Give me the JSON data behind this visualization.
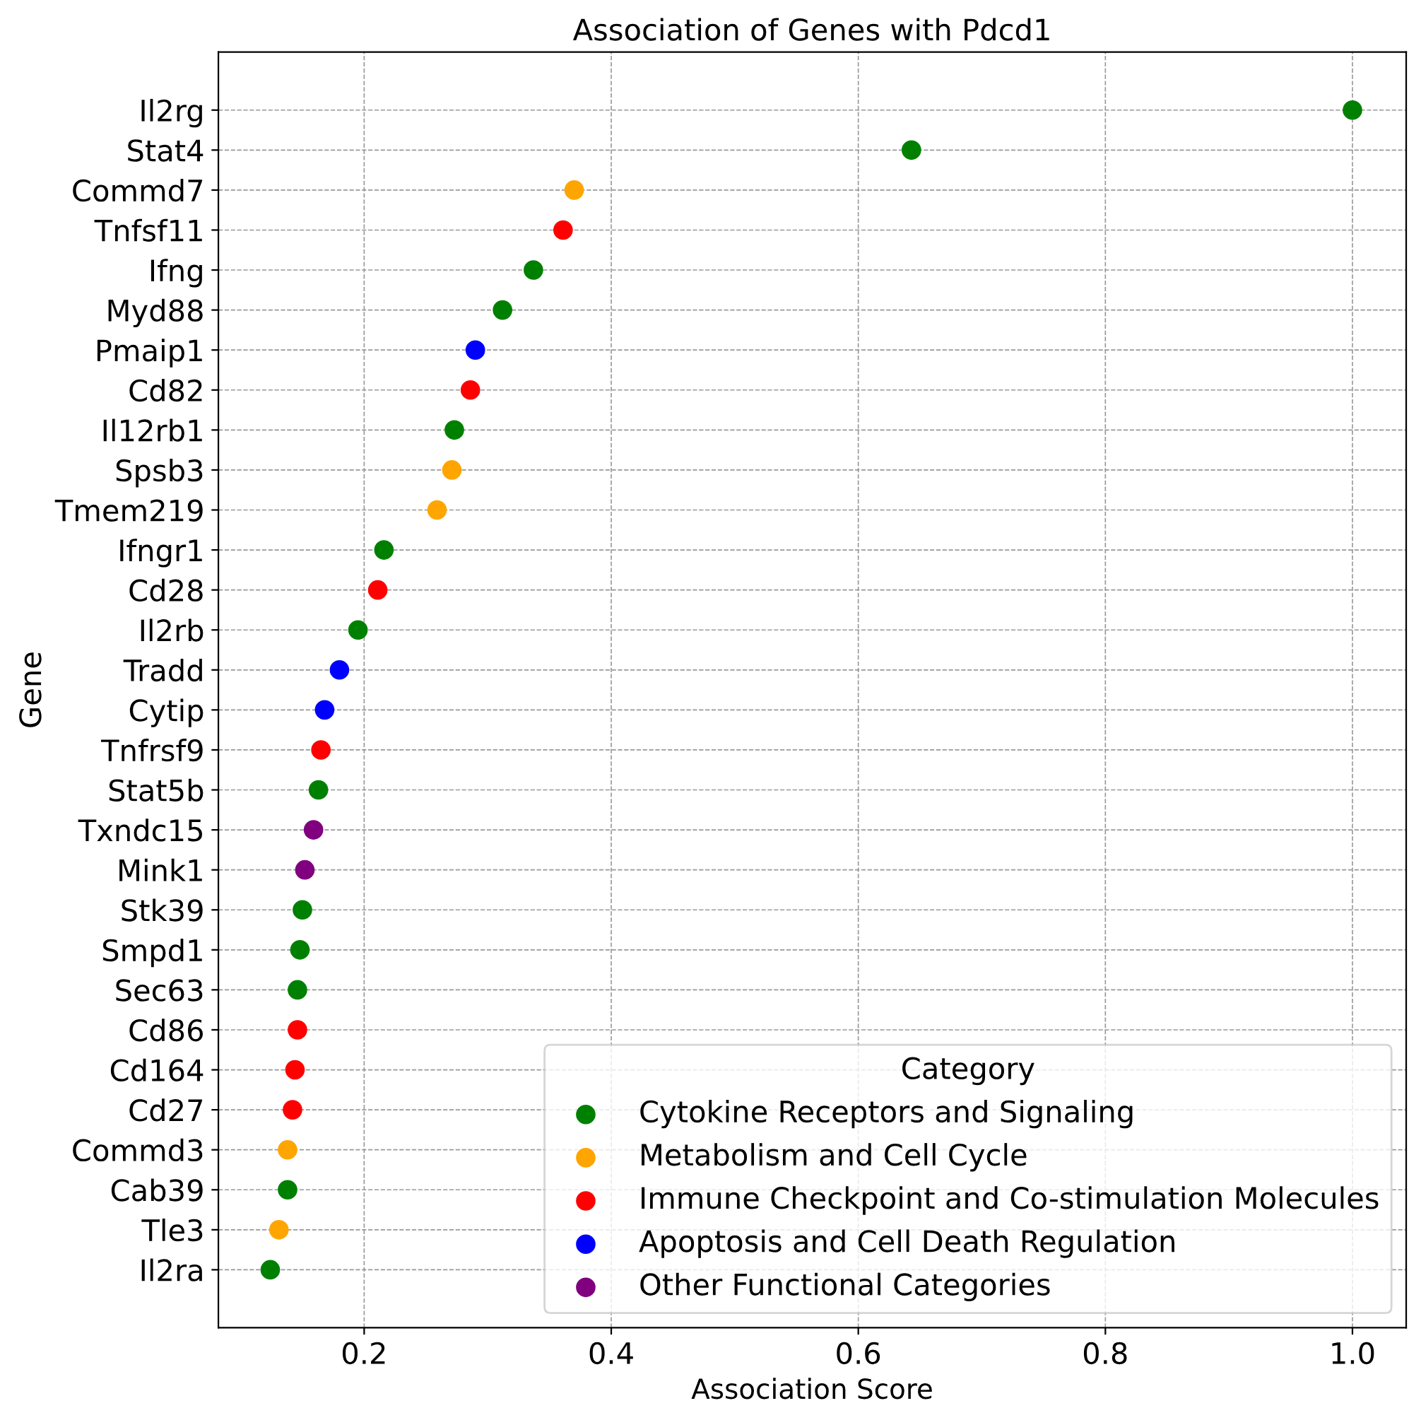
{
  "chart_data": {
    "type": "scatter",
    "title": "Association of Genes with Pdcd1",
    "xlabel": "Association Score",
    "ylabel": "Gene",
    "legend_title": "Category",
    "categories": [
      "Il2rg",
      "Stat4",
      "Commd7",
      "Tnfsf11",
      "Ifng",
      "Myd88",
      "Pmaip1",
      "Cd82",
      "Il12rb1",
      "Spsb3",
      "Tmem219",
      "Ifngr1",
      "Cd28",
      "Il2rb",
      "Tradd",
      "Cytip",
      "Tnfrsf9",
      "Stat5b",
      "Txndc15",
      "Mink1",
      "Stk39",
      "Smpd1",
      "Sec63",
      "Cd86",
      "Cd164",
      "Cd27",
      "Commd3",
      "Cab39",
      "Tle3",
      "Il2ra"
    ],
    "orientation": "horizontal",
    "xlim": [
      0.082,
      1.0435
    ],
    "xticks": [
      0.2,
      0.4,
      0.6,
      0.8,
      {
        "value": 1.0,
        "label": "1.0"
      }
    ],
    "grid": true,
    "legend": "bottom right",
    "marker": "circle",
    "series": [
      {
        "name": "Cytokine Receptors and Signaling",
        "color": "#008000",
        "values": [
          1.0,
          0.643,
          null,
          null,
          0.337,
          0.312,
          null,
          null,
          0.273,
          null,
          null,
          0.216,
          null,
          0.195,
          null,
          null,
          null,
          0.163,
          null,
          null,
          0.15,
          0.148,
          0.146,
          null,
          null,
          null,
          null,
          0.138,
          null,
          0.124
        ]
      },
      {
        "name": "Metabolism and Cell Cycle",
        "color": "#ffa500",
        "values": [
          null,
          null,
          0.37,
          null,
          null,
          null,
          null,
          null,
          null,
          0.271,
          0.259,
          null,
          null,
          null,
          null,
          null,
          null,
          null,
          null,
          null,
          null,
          null,
          null,
          null,
          null,
          null,
          0.138,
          null,
          0.131,
          null
        ]
      },
      {
        "name": "Immune Checkpoint and Co-stimulation Molecules",
        "color": "#ff0000",
        "values": [
          null,
          null,
          null,
          0.361,
          null,
          null,
          null,
          0.286,
          null,
          null,
          null,
          null,
          0.211,
          null,
          null,
          null,
          0.165,
          null,
          null,
          null,
          null,
          null,
          null,
          0.146,
          0.144,
          0.142,
          null,
          null,
          null,
          null
        ]
      },
      {
        "name": "Apoptosis and Cell Death Regulation",
        "color": "#0000ff",
        "values": [
          null,
          null,
          null,
          null,
          null,
          null,
          0.29,
          null,
          null,
          null,
          null,
          null,
          null,
          null,
          0.18,
          0.168,
          null,
          null,
          null,
          null,
          null,
          null,
          null,
          null,
          null,
          null,
          null,
          null,
          null,
          null
        ]
      },
      {
        "name": "Other Functional Categories",
        "color": "#800080",
        "values": [
          null,
          null,
          null,
          null,
          null,
          null,
          null,
          null,
          null,
          null,
          null,
          null,
          null,
          null,
          null,
          null,
          null,
          null,
          0.159,
          0.152,
          null,
          null,
          null,
          null,
          null,
          null,
          null,
          null,
          null,
          null
        ]
      }
    ]
  }
}
